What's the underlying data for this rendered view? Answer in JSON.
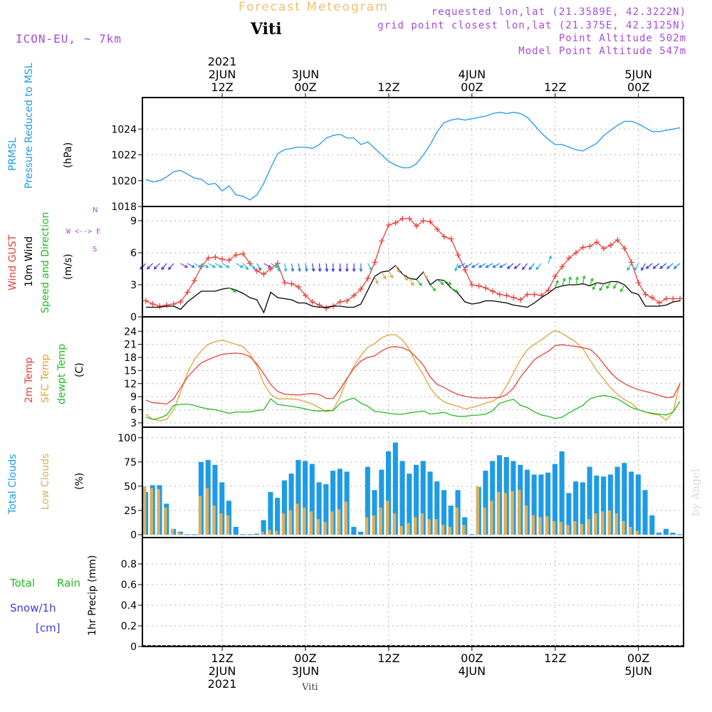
{
  "header": {
    "title": "Forecast Meteogram",
    "station": "Viti",
    "model": "ICON-EU, ~ 7km",
    "requested": "requested lon,lat (21.3589E, 42.3222N)",
    "grid_point": "grid point closest lon,lat (21.375E, 42.3125N)",
    "point_altitude": "Point Altitude 502m",
    "model_altitude": "Model Point Altitude 547m",
    "footer_station": "Viti",
    "watermark": "by Angel"
  },
  "time_axis": {
    "start_hour": 0,
    "end_hour": 78,
    "top_year": "2021",
    "top_labels": [
      {
        "hour": 11.5,
        "lines": [
          "2JUN",
          "12Z"
        ]
      },
      {
        "hour": 23.5,
        "lines": [
          "3JUN",
          "00Z"
        ]
      },
      {
        "hour": 35.5,
        "lines": [
          "",
          "12Z"
        ]
      },
      {
        "hour": 47.5,
        "lines": [
          "4JUN",
          "00Z"
        ]
      },
      {
        "hour": 59.5,
        "lines": [
          "",
          "12Z"
        ]
      },
      {
        "hour": 71.5,
        "lines": [
          "5JUN",
          "00Z"
        ]
      }
    ],
    "bottom_labels": [
      {
        "hour": 11.5,
        "lines": [
          "12Z",
          "2JUN",
          "2021"
        ]
      },
      {
        "hour": 23.5,
        "lines": [
          "00Z",
          "3JUN"
        ]
      },
      {
        "hour": 35.5,
        "lines": [
          "12Z"
        ]
      },
      {
        "hour": 47.5,
        "lines": [
          "00Z",
          "4JUN"
        ]
      },
      {
        "hour": 59.5,
        "lines": [
          "12Z"
        ]
      },
      {
        "hour": 71.5,
        "lines": [
          "00Z",
          "5JUN"
        ]
      }
    ]
  },
  "colors": {
    "pressure": "#1e9be6",
    "gust": "#e8413a",
    "wind": "#000000",
    "direction": "#22bb22",
    "temp2m": "#e8413a",
    "sfc_temp": "#e0a03a",
    "dewpt": "#22bb22",
    "total_clouds": "#1e9be6",
    "low_clouds": "#d9b060",
    "rain": "#22bb22",
    "snow": "#3b3bdd",
    "purple": "#a64bd8"
  },
  "chart_data": [
    {
      "type": "line",
      "panel": "pressure",
      "y_label_lines": [
        "PRMSL",
        "Pressure Reduced to MSL"
      ],
      "unit": "(hPa)",
      "ylim": [
        1018,
        1026
      ],
      "yticks": [
        1018,
        1020,
        1022,
        1024
      ],
      "series": [
        {
          "name": "PRMSL",
          "values": [
            1020.1,
            1019.9,
            1020.0,
            1020.3,
            1020.7,
            1020.8,
            1020.5,
            1020.2,
            1020.1,
            1019.7,
            1019.8,
            1019.2,
            1019.6,
            1018.9,
            1018.8,
            1018.5,
            1018.9,
            1019.8,
            1021.0,
            1022.1,
            1022.4,
            1022.5,
            1022.6,
            1022.6,
            1022.5,
            1022.8,
            1023.3,
            1023.5,
            1023.6,
            1023.3,
            1023.3,
            1022.8,
            1023.0,
            1022.5,
            1022.0,
            1021.5,
            1021.2,
            1021.0,
            1021.0,
            1021.3,
            1022.0,
            1022.8,
            1023.8,
            1024.5,
            1024.7,
            1024.8,
            1024.7,
            1024.8,
            1024.9,
            1025.0,
            1025.2,
            1025.3,
            1025.2,
            1025.3,
            1025.2,
            1024.9,
            1024.3,
            1023.7,
            1023.2,
            1022.8,
            1022.8,
            1022.6,
            1022.4,
            1022.3,
            1022.6,
            1022.9,
            1023.5,
            1023.9,
            1024.3,
            1024.6,
            1024.6,
            1024.4,
            1024.1,
            1023.8,
            1023.8,
            1023.9,
            1024.0,
            1024.1
          ]
        }
      ]
    },
    {
      "type": "line",
      "panel": "wind",
      "y_label_lines": [
        "Wind GUST",
        "10m Wind",
        "Speed and Direction"
      ],
      "unit": "(m/s)",
      "compass": [
        "N",
        "W <--> E",
        "S"
      ],
      "ylim": [
        0,
        9.8
      ],
      "yticks": [
        0,
        3,
        6,
        9
      ],
      "series": [
        {
          "name": "Wind GUST",
          "values": [
            1.5,
            1.2,
            1.0,
            1.1,
            1.2,
            1.4,
            2.3,
            3.4,
            4.7,
            5.5,
            5.6,
            5.4,
            5.3,
            5.8,
            5.9,
            5.0,
            4.3,
            4.0,
            4.5,
            5.0,
            3.2,
            3.1,
            2.8,
            2.0,
            1.4,
            1.1,
            0.8,
            1.0,
            1.4,
            1.5,
            2.0,
            2.6,
            3.6,
            5.1,
            7.1,
            8.6,
            8.8,
            9.2,
            9.2,
            8.5,
            9.0,
            8.9,
            8.2,
            7.5,
            7.3,
            5.8,
            4.4,
            3.0,
            2.9,
            2.7,
            2.4,
            2.1,
            2.0,
            1.8,
            1.6,
            2.1,
            2.1,
            2.0,
            2.5,
            3.8,
            4.7,
            5.5,
            6.0,
            6.5,
            6.6,
            7.0,
            6.4,
            6.7,
            7.2,
            6.4,
            5.1,
            3.2,
            2.1,
            1.8,
            1.3,
            1.7,
            1.7,
            1.7
          ]
        },
        {
          "name": "10m Wind",
          "values": [
            0.9,
            0.9,
            0.9,
            1.0,
            1.0,
            0.7,
            1.4,
            1.9,
            2.4,
            2.4,
            2.4,
            2.6,
            2.7,
            2.5,
            2.2,
            1.8,
            1.6,
            0.4,
            2.3,
            1.8,
            1.7,
            1.6,
            1.3,
            1.3,
            1.0,
            0.9,
            0.9,
            1.0,
            1.0,
            0.9,
            0.9,
            1.2,
            2.5,
            3.8,
            4.2,
            4.3,
            4.8,
            4.0,
            3.6,
            3.5,
            4.2,
            3.0,
            3.5,
            3.4,
            2.7,
            2.2,
            1.4,
            1.2,
            1.3,
            1.5,
            1.5,
            1.4,
            1.3,
            1.1,
            1.0,
            0.9,
            1.3,
            1.8,
            2.2,
            2.7,
            2.9,
            3.0,
            3.0,
            3.1,
            2.9,
            3.2,
            3.1,
            3.3,
            3.3,
            3.0,
            2.3,
            2.1,
            1.0,
            1.0,
            1.0,
            1.1,
            1.4,
            1.5
          ]
        },
        {
          "name": "Direction (deg)",
          "values": [
            45,
            45,
            45,
            40,
            40,
            300,
            300,
            300,
            300,
            300,
            300,
            300,
            300,
            300,
            320,
            320,
            330,
            300,
            300,
            350,
            350,
            350,
            350,
            350,
            350,
            355,
            355,
            0,
            0,
            0,
            0,
            0,
            330,
            340,
            330,
            330,
            330,
            320,
            330,
            320,
            330,
            320,
            310,
            300,
            300,
            20,
            60,
            60,
            60,
            60,
            60,
            60,
            60,
            50,
            50,
            40,
            40,
            40,
            200,
            200,
            200,
            190,
            190,
            190,
            200,
            30,
            30,
            30,
            30,
            30,
            30,
            30,
            30,
            50,
            50,
            50,
            50,
            50
          ]
        }
      ]
    },
    {
      "type": "line",
      "panel": "temperature",
      "y_label_lines": [
        "2m Temp",
        "SFC Temp",
        "dewpt Temp"
      ],
      "unit": "(C)",
      "ylim": [
        2,
        26
      ],
      "yticks": [
        3,
        6,
        9,
        12,
        15,
        18,
        21,
        24
      ],
      "series": [
        {
          "name": "2m Temp",
          "values": [
            8.2,
            7.6,
            7.5,
            7.3,
            8.5,
            11.0,
            13.5,
            15.2,
            16.8,
            17.5,
            18.2,
            18.7,
            18.9,
            19.0,
            18.8,
            18.2,
            16.5,
            14.2,
            11.8,
            10.2,
            9.6,
            9.5,
            9.4,
            9.6,
            9.7,
            9.5,
            8.6,
            8.6,
            10.7,
            13.2,
            15.5,
            17.2,
            18.0,
            18.4,
            19.5,
            20.3,
            20.5,
            20.2,
            19.5,
            18.0,
            16.2,
            13.5,
            11.8,
            11.1,
            10.2,
            9.5,
            9.1,
            8.8,
            8.7,
            8.7,
            8.8,
            8.8,
            9.5,
            11.0,
            13.5,
            15.5,
            17.5,
            18.5,
            19.4,
            20.7,
            20.9,
            20.7,
            20.5,
            20.2,
            19.9,
            18.5,
            16.5,
            14.5,
            13.0,
            12.0,
            11.2,
            10.6,
            10.2,
            9.8,
            9.3,
            8.8,
            8.9,
            12.0
          ]
        },
        {
          "name": "SFC Temp",
          "values": [
            5.0,
            3.8,
            3.5,
            3.8,
            6.0,
            10.0,
            14.5,
            17.5,
            19.5,
            21.0,
            21.6,
            22.0,
            21.5,
            21.0,
            20.5,
            18.8,
            16.0,
            12.0,
            9.5,
            8.5,
            8.5,
            8.5,
            8.3,
            7.8,
            7.3,
            6.5,
            5.5,
            6.0,
            9.0,
            13.0,
            16.0,
            18.5,
            20.3,
            21.2,
            22.5,
            23.2,
            23.2,
            22.0,
            19.8,
            16.5,
            14.0,
            11.0,
            9.0,
            7.8,
            7.2,
            6.8,
            6.2,
            6.5,
            7.0,
            7.5,
            8.0,
            9.0,
            11.5,
            14.5,
            17.5,
            19.8,
            21.0,
            22.0,
            23.2,
            24.2,
            23.5,
            22.5,
            21.5,
            20.0,
            17.5,
            15.0,
            13.0,
            11.0,
            9.5,
            8.3,
            7.5,
            6.0,
            5.5,
            5.0,
            4.8,
            3.6,
            5.5,
            12.3
          ]
        },
        {
          "name": "dewpt Temp",
          "values": [
            4.3,
            3.8,
            4.1,
            4.8,
            7.0,
            7.2,
            7.3,
            7.0,
            6.5,
            6.2,
            6.0,
            5.6,
            5.2,
            5.5,
            5.5,
            5.5,
            5.8,
            6.0,
            8.5,
            7.2,
            7.0,
            6.8,
            6.5,
            6.2,
            5.8,
            5.7,
            5.8,
            5.8,
            7.5,
            8.2,
            8.7,
            7.5,
            6.8,
            5.6,
            5.5,
            5.2,
            5.0,
            5.0,
            5.3,
            5.5,
            5.7,
            5.0,
            5.2,
            5.4,
            4.8,
            4.5,
            4.5,
            4.7,
            4.8,
            5.0,
            5.8,
            7.5,
            8.0,
            8.4,
            7.0,
            6.5,
            5.5,
            4.8,
            4.5,
            4.0,
            4.3,
            5.3,
            6.2,
            7.0,
            8.5,
            9.0,
            9.3,
            9.0,
            8.5,
            7.5,
            6.5,
            6.0,
            5.5,
            5.2,
            5.0,
            4.8,
            5.5,
            8.0
          ]
        }
      ]
    },
    {
      "type": "bar",
      "panel": "clouds",
      "y_label_lines": [
        "Total Clouds",
        "Low Clouds"
      ],
      "unit": "(%)",
      "ylim": [
        -3,
        105
      ],
      "yticks": [
        0,
        25,
        50,
        75,
        100
      ],
      "series": [
        {
          "name": "Total Clouds",
          "values": [
            44,
            51,
            51,
            32,
            6,
            3,
            0,
            0,
            75,
            77,
            72,
            54,
            35,
            8,
            0,
            0,
            1,
            15,
            44,
            38,
            56,
            63,
            77,
            76,
            73,
            54,
            52,
            66,
            68,
            65,
            8,
            3,
            70,
            46,
            67,
            86,
            95,
            76,
            63,
            72,
            76,
            65,
            55,
            46,
            30,
            46,
            18,
            0,
            49,
            66,
            76,
            82,
            80,
            76,
            72,
            67,
            62,
            62,
            64,
            73,
            86,
            43,
            55,
            54,
            70,
            61,
            60,
            62,
            70,
            74,
            65,
            62,
            46,
            20,
            2,
            6,
            2,
            0
          ]
        },
        {
          "name": "Low Clouds",
          "values": [
            50,
            48,
            47,
            28,
            6,
            2,
            0,
            0,
            40,
            48,
            30,
            22,
            20,
            0,
            0,
            0,
            0,
            3,
            5,
            4,
            22,
            25,
            32,
            28,
            24,
            16,
            13,
            24,
            26,
            34,
            0,
            0,
            18,
            20,
            28,
            35,
            22,
            9,
            12,
            18,
            22,
            16,
            16,
            10,
            8,
            28,
            10,
            0,
            50,
            28,
            35,
            44,
            43,
            45,
            46,
            30,
            20,
            18,
            19,
            14,
            13,
            10,
            14,
            11,
            16,
            22,
            24,
            25,
            22,
            14,
            8,
            4,
            0,
            0,
            0,
            0,
            0,
            0
          ]
        }
      ]
    },
    {
      "type": "bar",
      "panel": "precip",
      "y_label_lines": [
        "1hr Precip (mm)"
      ],
      "legend_rain": [
        "Total",
        "Rain"
      ],
      "legend_snow": [
        "Snow/1h",
        "[cm]"
      ],
      "ylim": [
        0,
        1.0
      ],
      "yticks": [
        0,
        0.2,
        0.4,
        0.6,
        0.8
      ],
      "series": [
        {
          "name": "Total Rain",
          "values": [
            0,
            0,
            0,
            0,
            0,
            0,
            0,
            0,
            0,
            0,
            0,
            0,
            0,
            0,
            0,
            0,
            0,
            0,
            0,
            0,
            0,
            0,
            0,
            0,
            0,
            0,
            0,
            0,
            0,
            0,
            0,
            0,
            0,
            0,
            0,
            0,
            0,
            0,
            0,
            0,
            0,
            0,
            0,
            0,
            0,
            0,
            0,
            0,
            0,
            0,
            0,
            0,
            0,
            0,
            0,
            0,
            0,
            0,
            0,
            0,
            0,
            0,
            0,
            0,
            0,
            0,
            0,
            0,
            0,
            0,
            0,
            0,
            0,
            0,
            0,
            0,
            0,
            0
          ]
        }
      ]
    }
  ]
}
